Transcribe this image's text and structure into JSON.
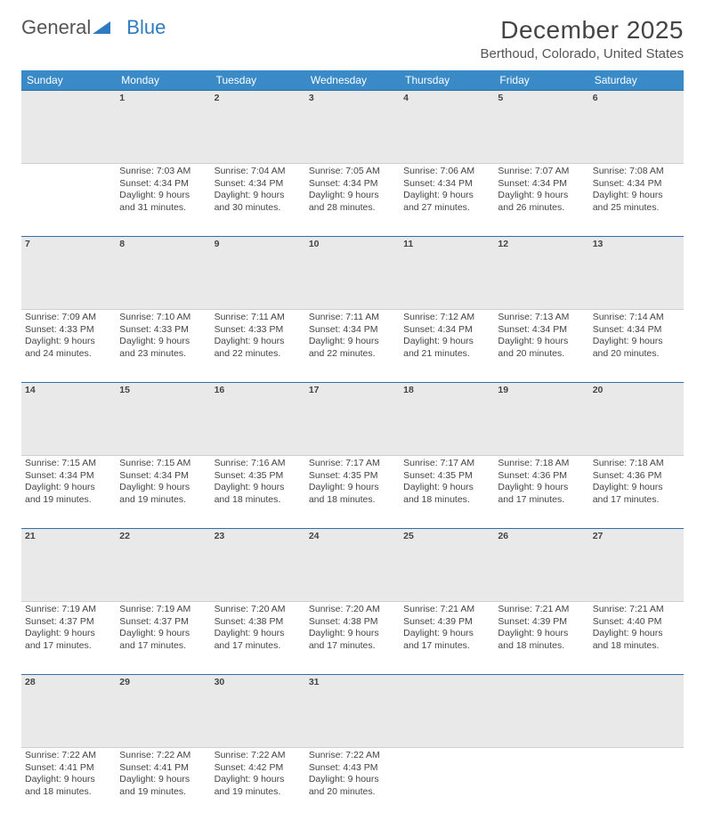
{
  "logo": {
    "part1": "General",
    "part2": "Blue"
  },
  "title": "December 2025",
  "location": "Berthoud, Colorado, United States",
  "colors": {
    "header_bg": "#3a8ac8",
    "daynum_bg": "#e9e9e9",
    "daynum_border_top": "#2f6fa8",
    "text": "#444444",
    "background": "#ffffff"
  },
  "weekdays": [
    "Sunday",
    "Monday",
    "Tuesday",
    "Wednesday",
    "Thursday",
    "Friday",
    "Saturday"
  ],
  "weeks": [
    {
      "nums": [
        "",
        "1",
        "2",
        "3",
        "4",
        "5",
        "6"
      ],
      "cells": [
        {
          "sunrise": "",
          "sunset": "",
          "daylight1": "",
          "daylight2": ""
        },
        {
          "sunrise": "Sunrise: 7:03 AM",
          "sunset": "Sunset: 4:34 PM",
          "daylight1": "Daylight: 9 hours",
          "daylight2": "and 31 minutes."
        },
        {
          "sunrise": "Sunrise: 7:04 AM",
          "sunset": "Sunset: 4:34 PM",
          "daylight1": "Daylight: 9 hours",
          "daylight2": "and 30 minutes."
        },
        {
          "sunrise": "Sunrise: 7:05 AM",
          "sunset": "Sunset: 4:34 PM",
          "daylight1": "Daylight: 9 hours",
          "daylight2": "and 28 minutes."
        },
        {
          "sunrise": "Sunrise: 7:06 AM",
          "sunset": "Sunset: 4:34 PM",
          "daylight1": "Daylight: 9 hours",
          "daylight2": "and 27 minutes."
        },
        {
          "sunrise": "Sunrise: 7:07 AM",
          "sunset": "Sunset: 4:34 PM",
          "daylight1": "Daylight: 9 hours",
          "daylight2": "and 26 minutes."
        },
        {
          "sunrise": "Sunrise: 7:08 AM",
          "sunset": "Sunset: 4:34 PM",
          "daylight1": "Daylight: 9 hours",
          "daylight2": "and 25 minutes."
        }
      ]
    },
    {
      "nums": [
        "7",
        "8",
        "9",
        "10",
        "11",
        "12",
        "13"
      ],
      "cells": [
        {
          "sunrise": "Sunrise: 7:09 AM",
          "sunset": "Sunset: 4:33 PM",
          "daylight1": "Daylight: 9 hours",
          "daylight2": "and 24 minutes."
        },
        {
          "sunrise": "Sunrise: 7:10 AM",
          "sunset": "Sunset: 4:33 PM",
          "daylight1": "Daylight: 9 hours",
          "daylight2": "and 23 minutes."
        },
        {
          "sunrise": "Sunrise: 7:11 AM",
          "sunset": "Sunset: 4:33 PM",
          "daylight1": "Daylight: 9 hours",
          "daylight2": "and 22 minutes."
        },
        {
          "sunrise": "Sunrise: 7:11 AM",
          "sunset": "Sunset: 4:34 PM",
          "daylight1": "Daylight: 9 hours",
          "daylight2": "and 22 minutes."
        },
        {
          "sunrise": "Sunrise: 7:12 AM",
          "sunset": "Sunset: 4:34 PM",
          "daylight1": "Daylight: 9 hours",
          "daylight2": "and 21 minutes."
        },
        {
          "sunrise": "Sunrise: 7:13 AM",
          "sunset": "Sunset: 4:34 PM",
          "daylight1": "Daylight: 9 hours",
          "daylight2": "and 20 minutes."
        },
        {
          "sunrise": "Sunrise: 7:14 AM",
          "sunset": "Sunset: 4:34 PM",
          "daylight1": "Daylight: 9 hours",
          "daylight2": "and 20 minutes."
        }
      ]
    },
    {
      "nums": [
        "14",
        "15",
        "16",
        "17",
        "18",
        "19",
        "20"
      ],
      "cells": [
        {
          "sunrise": "Sunrise: 7:15 AM",
          "sunset": "Sunset: 4:34 PM",
          "daylight1": "Daylight: 9 hours",
          "daylight2": "and 19 minutes."
        },
        {
          "sunrise": "Sunrise: 7:15 AM",
          "sunset": "Sunset: 4:34 PM",
          "daylight1": "Daylight: 9 hours",
          "daylight2": "and 19 minutes."
        },
        {
          "sunrise": "Sunrise: 7:16 AM",
          "sunset": "Sunset: 4:35 PM",
          "daylight1": "Daylight: 9 hours",
          "daylight2": "and 18 minutes."
        },
        {
          "sunrise": "Sunrise: 7:17 AM",
          "sunset": "Sunset: 4:35 PM",
          "daylight1": "Daylight: 9 hours",
          "daylight2": "and 18 minutes."
        },
        {
          "sunrise": "Sunrise: 7:17 AM",
          "sunset": "Sunset: 4:35 PM",
          "daylight1": "Daylight: 9 hours",
          "daylight2": "and 18 minutes."
        },
        {
          "sunrise": "Sunrise: 7:18 AM",
          "sunset": "Sunset: 4:36 PM",
          "daylight1": "Daylight: 9 hours",
          "daylight2": "and 17 minutes."
        },
        {
          "sunrise": "Sunrise: 7:18 AM",
          "sunset": "Sunset: 4:36 PM",
          "daylight1": "Daylight: 9 hours",
          "daylight2": "and 17 minutes."
        }
      ]
    },
    {
      "nums": [
        "21",
        "22",
        "23",
        "24",
        "25",
        "26",
        "27"
      ],
      "cells": [
        {
          "sunrise": "Sunrise: 7:19 AM",
          "sunset": "Sunset: 4:37 PM",
          "daylight1": "Daylight: 9 hours",
          "daylight2": "and 17 minutes."
        },
        {
          "sunrise": "Sunrise: 7:19 AM",
          "sunset": "Sunset: 4:37 PM",
          "daylight1": "Daylight: 9 hours",
          "daylight2": "and 17 minutes."
        },
        {
          "sunrise": "Sunrise: 7:20 AM",
          "sunset": "Sunset: 4:38 PM",
          "daylight1": "Daylight: 9 hours",
          "daylight2": "and 17 minutes."
        },
        {
          "sunrise": "Sunrise: 7:20 AM",
          "sunset": "Sunset: 4:38 PM",
          "daylight1": "Daylight: 9 hours",
          "daylight2": "and 17 minutes."
        },
        {
          "sunrise": "Sunrise: 7:21 AM",
          "sunset": "Sunset: 4:39 PM",
          "daylight1": "Daylight: 9 hours",
          "daylight2": "and 17 minutes."
        },
        {
          "sunrise": "Sunrise: 7:21 AM",
          "sunset": "Sunset: 4:39 PM",
          "daylight1": "Daylight: 9 hours",
          "daylight2": "and 18 minutes."
        },
        {
          "sunrise": "Sunrise: 7:21 AM",
          "sunset": "Sunset: 4:40 PM",
          "daylight1": "Daylight: 9 hours",
          "daylight2": "and 18 minutes."
        }
      ]
    },
    {
      "nums": [
        "28",
        "29",
        "30",
        "31",
        "",
        "",
        ""
      ],
      "cells": [
        {
          "sunrise": "Sunrise: 7:22 AM",
          "sunset": "Sunset: 4:41 PM",
          "daylight1": "Daylight: 9 hours",
          "daylight2": "and 18 minutes."
        },
        {
          "sunrise": "Sunrise: 7:22 AM",
          "sunset": "Sunset: 4:41 PM",
          "daylight1": "Daylight: 9 hours",
          "daylight2": "and 19 minutes."
        },
        {
          "sunrise": "Sunrise: 7:22 AM",
          "sunset": "Sunset: 4:42 PM",
          "daylight1": "Daylight: 9 hours",
          "daylight2": "and 19 minutes."
        },
        {
          "sunrise": "Sunrise: 7:22 AM",
          "sunset": "Sunset: 4:43 PM",
          "daylight1": "Daylight: 9 hours",
          "daylight2": "and 20 minutes."
        },
        {
          "sunrise": "",
          "sunset": "",
          "daylight1": "",
          "daylight2": ""
        },
        {
          "sunrise": "",
          "sunset": "",
          "daylight1": "",
          "daylight2": ""
        },
        {
          "sunrise": "",
          "sunset": "",
          "daylight1": "",
          "daylight2": ""
        }
      ]
    }
  ]
}
